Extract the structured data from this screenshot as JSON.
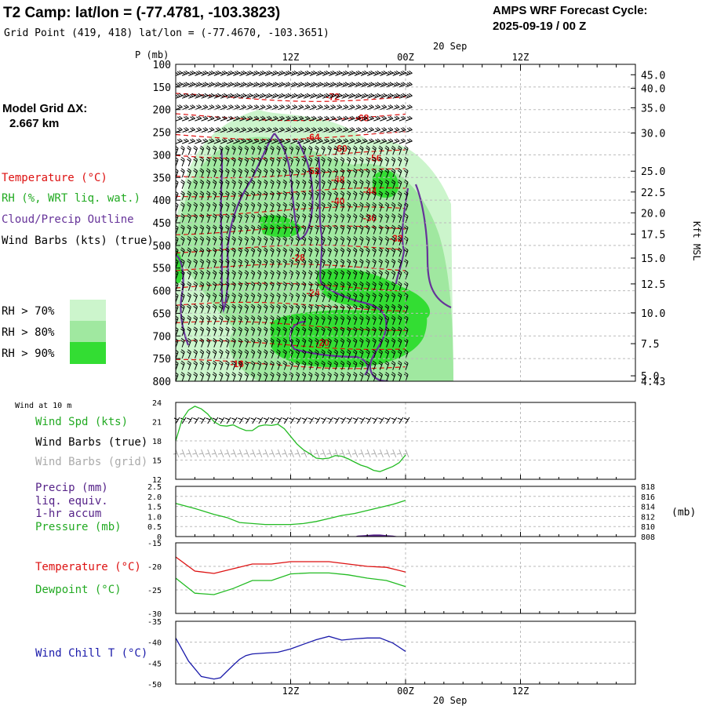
{
  "header": {
    "title": "T2 Camp:  lat/lon = (-77.4781, -103.3823)",
    "grid_point": "Grid Point (419, 418) lat/lon = (-77.4670, -103.3651)",
    "cycle_line1": "AMPS WRF Forecast Cycle:",
    "cycle_line2": "2025-09-19 / 00  Z"
  },
  "model_grid": {
    "line1": "Model Grid ΔX:",
    "line2": "2.667 km"
  },
  "legend": {
    "temperature": "Temperature (°C)",
    "rh": "RH (%, WRT liq. wat.)",
    "cloud": "Cloud/Precip Outline",
    "wind": "Wind Barbs (kts) (true)",
    "rh70": "RH > 70%",
    "rh80": "RH > 80%",
    "rh90": "RH > 90%"
  },
  "colors": {
    "temperature": "#dd1111",
    "rh70": "#ccf5cc",
    "rh80": "#a0e8a0",
    "rh90": "#33dd33",
    "cloud": "#663399",
    "dewpoint": "#22bb22",
    "windchill": "#1a1aaa",
    "precip": "#552288",
    "wind_grid": "#aaaaaa"
  },
  "time_axis": {
    "ticks": [
      "12Z",
      "00Z",
      "12Z"
    ],
    "date_label": "20 Sep"
  },
  "chart_data": [
    {
      "type": "heatmap",
      "title": "",
      "ylabel": "P (mb)",
      "y2label": "Kft MSL",
      "yticks": [
        100,
        150,
        200,
        250,
        300,
        350,
        400,
        450,
        500,
        550,
        600,
        650,
        700,
        750,
        800
      ],
      "y2ticks": [
        "45.0",
        "40.0",
        "35.0",
        "30.0",
        "25.0",
        "22.5",
        "20.0",
        "17.5",
        "15.0",
        "12.5",
        "10.0",
        "7.5",
        "5.0",
        "4.43"
      ],
      "y2ticks_pressure": [
        123,
        153,
        196,
        252,
        336,
        382,
        428,
        475,
        528,
        585,
        649,
        717,
        788,
        800
      ],
      "x_hours": [
        0,
        72
      ],
      "data_end_hour": 36,
      "temperature_contour_labels": [
        {
          "label": "-72",
          "t": 24.6,
          "p": 172
        },
        {
          "label": "-68",
          "t": 29.2,
          "p": 219
        },
        {
          "label": "-64",
          "t": 21.5,
          "p": 261
        },
        {
          "label": "-60",
          "t": 25.8,
          "p": 286
        },
        {
          "label": "-56",
          "t": 31.2,
          "p": 307
        },
        {
          "label": "-52",
          "t": 21.5,
          "p": 336
        },
        {
          "label": "-48",
          "t": 25.4,
          "p": 355
        },
        {
          "label": "-44",
          "t": 30.4,
          "p": 381
        },
        {
          "label": "-40",
          "t": 25.4,
          "p": 402
        },
        {
          "label": "-36",
          "t": 30.4,
          "p": 440
        },
        {
          "label": "-32",
          "t": 34.5,
          "p": 485
        },
        {
          "label": "-28",
          "t": 19.2,
          "p": 527
        },
        {
          "label": "-24",
          "t": 21.5,
          "p": 605
        },
        {
          "label": "-20",
          "t": 23.0,
          "p": 715
        },
        {
          "label": "-16",
          "t": 9.6,
          "p": 762
        }
      ]
    },
    {
      "type": "line",
      "label": "Wind at 10 m",
      "series_labels": [
        "Wind Spd (kts)",
        "Wind Barbs (true)",
        "Wind Barbs (grid)"
      ],
      "ylim": [
        12,
        24
      ],
      "yticks": [
        12,
        15,
        18,
        21,
        24
      ],
      "series": [
        {
          "name": "Wind Spd (kts)",
          "x": [
            0,
            1,
            2,
            3,
            4,
            5,
            6,
            7,
            8,
            9,
            10,
            11,
            12,
            13,
            14,
            15,
            16,
            17,
            18,
            19,
            20,
            21,
            22,
            23,
            24,
            25,
            26,
            27,
            28,
            29,
            30,
            31,
            32,
            33,
            34,
            35,
            36
          ],
          "values": [
            18,
            21.3,
            22.8,
            23.4,
            23.0,
            22.2,
            21.0,
            20.4,
            20.3,
            20.5,
            20.0,
            19.6,
            19.6,
            20.3,
            20.5,
            20.4,
            20.6,
            19.9,
            18.7,
            17.5,
            16.6,
            16.0,
            15.3,
            15.2,
            15.3,
            15.7,
            15.6,
            15.2,
            14.7,
            14.2,
            13.9,
            13.4,
            13.2,
            13.6,
            14.0,
            14.6,
            15.8
          ]
        }
      ]
    },
    {
      "type": "line",
      "series_labels": [
        "Precip (mm)",
        "liq. equiv.",
        "1-hr accum",
        "Pressure (mb)"
      ],
      "y1lim": [
        0,
        2.5
      ],
      "y1ticks": [
        "0",
        "0.5",
        "1.0",
        "1.5",
        "2.0",
        "2.5"
      ],
      "y2lim": [
        808,
        818
      ],
      "y2ticks": [
        808,
        810,
        812,
        814,
        816,
        818
      ],
      "y2label": "(mb)",
      "series": [
        {
          "name": "Pressure (mb)",
          "x": [
            0,
            3,
            6,
            8,
            10,
            12,
            14,
            16,
            18,
            20,
            22,
            24,
            26,
            28,
            30,
            32,
            34,
            36
          ],
          "values": [
            814.6,
            813.6,
            812.4,
            811.8,
            810.8,
            810.6,
            810.4,
            810.4,
            810.4,
            810.6,
            811.0,
            811.6,
            812.2,
            812.6,
            813.2,
            813.8,
            814.4,
            815.2
          ]
        },
        {
          "name": "Precip (mm)",
          "x": [
            0,
            28,
            28.5,
            29,
            30,
            31,
            32,
            33,
            34,
            35,
            36
          ],
          "values": [
            0,
            0,
            0.05,
            0.06,
            0.08,
            0.1,
            0.1,
            0.07,
            0.05,
            0,
            0
          ]
        }
      ]
    },
    {
      "type": "line",
      "ylim": [
        -30,
        -15
      ],
      "yticks": [
        -30,
        -25,
        -20,
        -15
      ],
      "series": [
        {
          "name": "Temperature (°C)",
          "x": [
            0,
            3,
            6,
            9,
            12,
            15,
            18,
            21,
            24,
            27,
            30,
            33,
            36
          ],
          "values": [
            -18,
            -21,
            -21.5,
            -20.5,
            -19.5,
            -19.5,
            -19,
            -19,
            -19,
            -19.5,
            -20,
            -20.2,
            -21.2
          ]
        },
        {
          "name": "Dewpoint (°C)",
          "x": [
            0,
            3,
            6,
            9,
            12,
            15,
            18,
            21,
            24,
            27,
            30,
            33,
            36
          ],
          "values": [
            -22.5,
            -25.7,
            -26,
            -24.7,
            -23,
            -23,
            -21.6,
            -21.4,
            -21.4,
            -21.8,
            -22.5,
            -23,
            -24.3
          ]
        }
      ]
    },
    {
      "type": "line",
      "ylim": [
        -50,
        -35
      ],
      "yticks": [
        -50,
        -45,
        -40,
        -35
      ],
      "series": [
        {
          "name": "Wind Chill T (°C)",
          "x": [
            0,
            2,
            4,
            6,
            7,
            8,
            9,
            10,
            11,
            12,
            14,
            16,
            18,
            20,
            22,
            24,
            26,
            28,
            30,
            32,
            34,
            36
          ],
          "values": [
            -39,
            -44.5,
            -48.2,
            -48.8,
            -48.5,
            -47,
            -45.5,
            -44.1,
            -43.2,
            -42.8,
            -42.6,
            -42.4,
            -41.6,
            -40.5,
            -39.4,
            -38.6,
            -39.5,
            -39.2,
            -39,
            -39,
            -40.2,
            -42.2
          ]
        }
      ]
    }
  ]
}
